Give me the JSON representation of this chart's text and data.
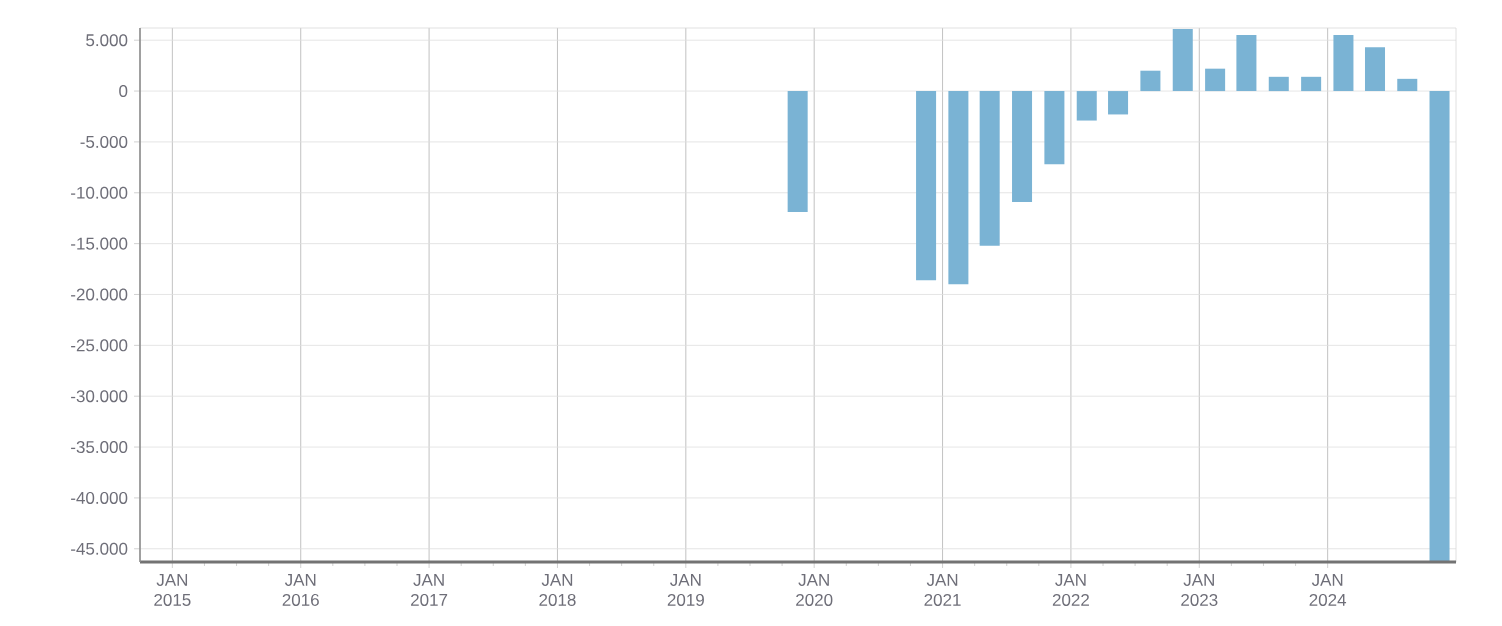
{
  "chart_data": {
    "type": "bar",
    "x": [
      "2019-11-15",
      "2020-11-15",
      "2021-02-15",
      "2021-05-15",
      "2021-08-15",
      "2021-11-15",
      "2022-02-15",
      "2022-05-15",
      "2022-08-15",
      "2022-11-15",
      "2023-02-15",
      "2023-05-15",
      "2023-08-15",
      "2023-11-15",
      "2024-02-15",
      "2024-05-15",
      "2024-08-15",
      "2024-11-15"
    ],
    "values": [
      -11900,
      -18600,
      -19000,
      -15200,
      -10900,
      -7200,
      -2900,
      -2300,
      2000,
      6100,
      2200,
      5500,
      1400,
      1400,
      5500,
      4300,
      1200,
      -46200
    ],
    "color": "#7ab3d4",
    "xlim": [
      "2014-10-01",
      "2025-01-01"
    ],
    "xticks": [
      {
        "value": "2015-01-01",
        "label": "JAN 2015"
      },
      {
        "value": "2016-01-01",
        "label": "JAN 2016"
      },
      {
        "value": "2017-01-01",
        "label": "JAN 2017"
      },
      {
        "value": "2018-01-01",
        "label": "JAN 2018"
      },
      {
        "value": "2019-01-01",
        "label": "JAN 2019"
      },
      {
        "value": "2020-01-01",
        "label": "JAN 2020"
      },
      {
        "value": "2021-01-01",
        "label": "JAN 2021"
      },
      {
        "value": "2022-01-01",
        "label": "JAN 2022"
      },
      {
        "value": "2023-01-01",
        "label": "JAN 2023"
      },
      {
        "value": "2024-01-01",
        "label": "JAN 2024"
      }
    ],
    "ylim": [
      -46300,
      6200
    ],
    "yticks": [
      {
        "value": 5000,
        "label": "5.000"
      },
      {
        "value": 0,
        "label": "0"
      },
      {
        "value": -5000,
        "label": "-5.000"
      },
      {
        "value": -10000,
        "label": "-10.000"
      },
      {
        "value": -15000,
        "label": "-15.000"
      },
      {
        "value": -20000,
        "label": "-20.000"
      },
      {
        "value": -25000,
        "label": "-25.000"
      },
      {
        "value": -30000,
        "label": "-30.000"
      },
      {
        "value": -35000,
        "label": "-35.000"
      },
      {
        "value": -40000,
        "label": "-40.000"
      },
      {
        "value": -45000,
        "label": "-45.000"
      }
    ],
    "grid": true
  }
}
